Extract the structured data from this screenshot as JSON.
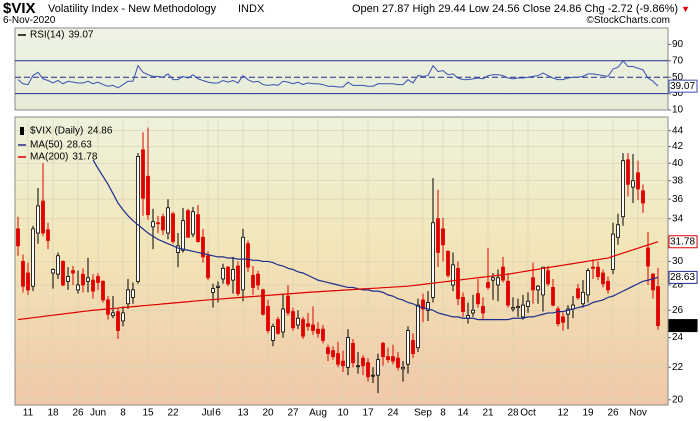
{
  "header": {
    "symbol": "$VIX",
    "name": "Volatility Index - New Methodology",
    "exchange": "INDX",
    "date": "6-Nov-2020",
    "quote": {
      "open_label": "Open",
      "open": 27.87,
      "high_label": "High",
      "high": 29.44,
      "low_label": "Low",
      "low": 24.56,
      "close_label": "Close",
      "close": 24.86,
      "chg_label": "Chg",
      "chg": -2.72,
      "chg_pct": "(-9.86%)"
    },
    "credit": "©StockCharts.com"
  },
  "chart_data": [
    {
      "type": "line",
      "series": [
        {
          "name": "RSI(14)",
          "color": "#3a4fb0",
          "values": [
            47,
            42,
            41,
            52,
            56,
            48,
            46,
            43,
            46,
            42,
            45,
            44,
            43,
            43,
            45,
            42,
            44,
            41,
            39,
            40,
            37,
            41,
            45,
            45,
            64,
            56,
            53,
            51,
            51,
            50,
            54,
            47,
            47,
            51,
            49,
            53,
            48,
            46,
            44,
            43,
            43,
            46,
            44,
            46,
            43,
            52,
            47,
            44,
            45,
            41,
            40,
            41,
            40,
            45,
            44,
            42,
            44,
            41,
            43,
            42,
            42,
            41,
            39,
            39,
            38,
            38,
            44,
            40,
            40,
            40,
            39,
            39,
            42,
            42,
            42,
            42,
            41,
            41,
            47,
            43,
            52,
            51,
            52,
            64,
            57,
            58,
            53,
            54,
            49,
            47,
            47,
            48,
            49,
            48,
            52,
            53,
            53,
            52,
            49,
            48,
            49,
            49,
            50,
            51,
            52,
            55,
            52,
            49,
            47,
            47,
            49,
            50,
            50,
            51,
            54,
            54,
            53,
            52,
            51,
            60,
            62,
            70,
            63,
            63,
            61,
            59,
            49,
            45,
            39.07
          ]
        }
      ],
      "ylim": [
        10,
        110
      ],
      "yticks": [
        10,
        30,
        50,
        70,
        90
      ],
      "reference_lines": [
        {
          "value": 70,
          "dash": false
        },
        {
          "value": 50,
          "dash": true
        },
        {
          "value": 30,
          "dash": false
        }
      ]
    },
    {
      "type": "candlestick",
      "name": "$VIX (Daily)",
      "up_color": "#000000",
      "down_color": "#e00000",
      "categories": [
        null,
        null,
        "11",
        null,
        null,
        null,
        null,
        "18",
        null,
        null,
        null,
        null,
        "26",
        null,
        null,
        null,
        "Jun",
        null,
        null,
        null,
        null,
        "8",
        null,
        null,
        null,
        null,
        "15",
        null,
        null,
        null,
        null,
        "22",
        null,
        null,
        null,
        null,
        null,
        null,
        "Jul",
        null,
        "6",
        null,
        null,
        null,
        null,
        "13",
        null,
        null,
        null,
        null,
        "20",
        null,
        null,
        null,
        null,
        "27",
        null,
        null,
        null,
        null,
        "Aug",
        null,
        null,
        null,
        null,
        "10",
        null,
        null,
        null,
        null,
        "17",
        null,
        null,
        null,
        null,
        "24",
        null,
        null,
        null,
        null,
        null,
        "Sep",
        null,
        null,
        null,
        "8",
        null,
        null,
        null,
        "14",
        null,
        null,
        null,
        null,
        "21",
        null,
        null,
        null,
        null,
        "28",
        null,
        null,
        "Oct",
        null,
        null,
        null,
        null,
        null,
        null,
        "12",
        null,
        null,
        null,
        null,
        "19",
        null,
        null,
        null,
        null,
        "26",
        null,
        null,
        null,
        null,
        "Nov",
        null,
        null,
        null,
        null
      ],
      "open": [
        33.0,
        30.0,
        29.0,
        27.9,
        32.6,
        35.8,
        32.9,
        29.0,
        28.9,
        30.0,
        28.3,
        29.2,
        27.6,
        28.9,
        28.3,
        28.4,
        28.7,
        28.3,
        26.8,
        25.6,
        25.9,
        25.2,
        26.5,
        27.0,
        28.3,
        41.6,
        38.5,
        33.2,
        33.6,
        34.2,
        32.6,
        34.5,
        30.8,
        31.0,
        34.8,
        32.5,
        34.4,
        32.2,
        30.5,
        27.4,
        27.8,
        28.5,
        29.5,
        28.4,
        29.6,
        27.6,
        31.6,
        28.8,
        28.9,
        27.6,
        26.3,
        23.8,
        25.3,
        24.4,
        27.1,
        25.9,
        24.9,
        25.3,
        25.0,
        24.9,
        24.6,
        24.6,
        23.3,
        23.1,
        22.9,
        22.4,
        22.0,
        23.6,
        22.1,
        22.6,
        22.3,
        21.5,
        21.5,
        23.6,
        22.7,
        22.7,
        22.6,
        21.9,
        22.2,
        23.8,
        23.3,
        26.8,
        26.0,
        27.0,
        34.0,
        33.0,
        30.9,
        28.0,
        29.4,
        27.0,
        25.4,
        25.8,
        27.3,
        26.3,
        28.2,
        28.4,
        28.0,
        29.5,
        28.3,
        26.1,
        26.2,
        25.5,
        26.3,
        28.6,
        27.6,
        27.2,
        29.2,
        27.8,
        26.1,
        25.5,
        25.7,
        26.1,
        27.7,
        26.5,
        27.2,
        29.5,
        29.5,
        29.0,
        28.3,
        29.3,
        32.2,
        34.2,
        40.4,
        37.3,
        38.9,
        36.9,
        31.2,
        28.9,
        27.87
      ],
      "high": [
        34.2,
        30.6,
        29.9,
        33.3,
        37.2,
        40.0,
        33.6,
        29.4,
        30.8,
        30.1,
        29.5,
        29.6,
        29.2,
        29.4,
        30.3,
        28.9,
        29.0,
        28.4,
        27.1,
        27.1,
        26.2,
        26.3,
        28.5,
        28.2,
        41.2,
        43.8,
        44.4,
        35.0,
        34.3,
        34.5,
        36.0,
        34.7,
        32.6,
        35.1,
        35.0,
        35.2,
        35.4,
        33.0,
        30.9,
        28.1,
        28.3,
        29.8,
        29.6,
        30.4,
        30.0,
        33.0,
        31.9,
        29.6,
        29.2,
        27.7,
        26.8,
        25.0,
        25.5,
        27.3,
        28.0,
        26.2,
        26.0,
        25.5,
        25.8,
        26.3,
        25.1,
        24.9,
        23.5,
        23.4,
        23.7,
        23.1,
        24.6,
        23.9,
        23.0,
        22.8,
        22.6,
        22.0,
        22.9,
        23.7,
        23.3,
        23.5,
        23.0,
        22.4,
        24.8,
        24.3,
        26.9,
        27.3,
        27.5,
        38.3,
        37.0,
        34.1,
        31.0,
        30.8,
        30.0,
        27.4,
        26.6,
        27.2,
        28.5,
        27.0,
        31.2,
        29.0,
        29.3,
        30.4,
        29.0,
        27.0,
        26.9,
        27.2,
        27.4,
        29.9,
        28.0,
        29.5,
        29.6,
        28.5,
        26.3,
        25.8,
        26.4,
        27.1,
        28.1,
        28.4,
        29.4,
        30.2,
        30.0,
        29.3,
        28.7,
        33.6,
        34.5,
        41.2,
        41.2,
        41.1,
        40.3,
        37.6,
        32.7,
        29.0,
        29.44
      ],
      "low": [
        30.5,
        27.4,
        27.2,
        27.5,
        31.6,
        32.3,
        31.1,
        27.7,
        28.5,
        27.9,
        27.6,
        28.0,
        27.3,
        27.4,
        27.4,
        26.9,
        27.6,
        26.6,
        25.3,
        25.4,
        23.9,
        24.8,
        26.1,
        26.5,
        28.1,
        34.3,
        33.9,
        31.1,
        32.6,
        32.4,
        32.0,
        31.6,
        29.5,
        30.8,
        32.2,
        32.2,
        31.7,
        29.9,
        28.4,
        26.2,
        26.6,
        28.1,
        27.9,
        27.3,
        27.1,
        26.7,
        29.1,
        27.2,
        27.6,
        25.6,
        24.3,
        23.4,
        24.2,
        24.0,
        25.6,
        24.5,
        24.6,
        23.9,
        24.5,
        24.2,
        24.0,
        23.6,
        22.4,
        22.5,
        22.0,
        21.7,
        21.5,
        22.0,
        21.6,
        21.5,
        21.1,
        21.0,
        20.4,
        22.1,
        22.3,
        22.2,
        21.8,
        21.1,
        21.6,
        22.6,
        23.0,
        25.1,
        25.2,
        26.6,
        29.5,
        30.0,
        28.6,
        27.5,
        26.4,
        25.5,
        25.0,
        25.5,
        26.2,
        25.3,
        27.6,
        26.8,
        26.7,
        28.2,
        26.2,
        25.9,
        25.5,
        25.3,
        25.8,
        26.5,
        26.5,
        25.9,
        27.9,
        26.3,
        24.8,
        24.5,
        24.6,
        25.4,
        26.8,
        26.2,
        26.6,
        28.5,
        28.4,
        27.8,
        27.3,
        28.9,
        31.5,
        33.3,
        36.3,
        35.6,
        35.9,
        34.6,
        28.0,
        26.9,
        24.56
      ],
      "close": [
        31.4,
        27.9,
        27.6,
        33.0,
        35.3,
        32.6,
        31.9,
        29.3,
        30.5,
        28.0,
        28.7,
        29.0,
        28.0,
        28.0,
        28.6,
        27.5,
        28.2,
        26.8,
        25.7,
        25.8,
        24.5,
        25.8,
        27.6,
        27.6,
        40.8,
        36.1,
        34.4,
        33.7,
        33.5,
        32.9,
        35.1,
        31.8,
        31.4,
        33.8,
        32.2,
        34.7,
        31.8,
        30.4,
        28.6,
        27.7,
        27.9,
        29.4,
        28.1,
        29.3,
        27.3,
        32.2,
        29.5,
        27.8,
        28.0,
        25.7,
        24.5,
        24.8,
        24.3,
        26.1,
        25.8,
        24.7,
        25.4,
        24.1,
        24.8,
        24.5,
        24.3,
        23.8,
        22.9,
        22.7,
        22.2,
        22.1,
        24.0,
        22.3,
        22.1,
        22.1,
        21.4,
        21.5,
        22.5,
        22.7,
        22.5,
        22.4,
        22.0,
        22.0,
        24.5,
        22.9,
        26.4,
        26.1,
        26.6,
        33.6,
        30.8,
        31.5,
        28.8,
        29.7,
        26.9,
        25.9,
        25.6,
        26.0,
        26.5,
        25.8,
        27.8,
        28.6,
        28.6,
        28.4,
        26.4,
        26.2,
        26.3,
        26.4,
        26.7,
        27.6,
        27.9,
        29.5,
        28.1,
        26.4,
        25.0,
        25.1,
        26.1,
        26.4,
        26.97,
        27.4,
        29.2,
        29.4,
        28.7,
        28.1,
        27.6,
        32.5,
        33.4,
        40.3,
        37.6,
        38.0,
        37.1,
        35.6,
        29.6,
        27.6,
        24.86
      ],
      "series": [
        {
          "name": "MA(50)",
          "color": "#1f2c8c",
          "values": [
            null,
            null,
            null,
            null,
            null,
            null,
            null,
            null,
            null,
            null,
            null,
            null,
            null,
            null,
            null,
            40.4,
            39.4,
            38.5,
            37.6,
            36.6,
            35.6,
            34.9,
            34.3,
            33.8,
            33.4,
            33.0,
            32.6,
            32.3,
            32.0,
            31.8,
            31.6,
            31.4,
            31.2,
            31.1,
            31.0,
            30.9,
            30.8,
            30.7,
            30.6,
            30.5,
            30.4,
            30.4,
            30.3,
            30.3,
            30.2,
            30.2,
            30.2,
            30.1,
            30.1,
            30.0,
            30.0,
            29.9,
            29.7,
            29.6,
            29.4,
            29.3,
            29.1,
            29.0,
            28.8,
            28.6,
            28.4,
            28.3,
            28.2,
            28.1,
            28.0,
            27.9,
            27.8,
            27.8,
            27.7,
            27.6,
            27.6,
            27.5,
            27.5,
            27.4,
            27.2,
            27.1,
            26.9,
            26.8,
            26.6,
            26.5,
            26.3,
            26.2,
            26.1,
            26.0,
            25.8,
            25.7,
            25.6,
            25.5,
            25.5,
            25.4,
            25.4,
            25.4,
            25.3,
            25.3,
            25.3,
            25.3,
            25.3,
            25.3,
            25.3,
            25.4,
            25.4,
            25.4,
            25.5,
            25.5,
            25.6,
            25.7,
            25.8,
            25.8,
            25.9,
            25.9,
            26.0,
            26.1,
            26.2,
            26.3,
            26.4,
            26.6,
            26.7,
            26.8,
            27.0,
            27.1,
            27.3,
            27.5,
            27.7,
            27.9,
            28.1,
            28.3,
            28.4,
            28.5,
            28.63
          ]
        },
        {
          "name": "MA(200)",
          "color": "#e00000",
          "values": [
            25.3,
            25.35,
            25.39,
            25.44,
            25.49,
            25.53,
            25.58,
            25.63,
            25.67,
            25.72,
            25.77,
            25.81,
            25.86,
            25.91,
            25.95,
            26.0,
            26.03,
            26.07,
            26.1,
            26.14,
            26.17,
            26.21,
            26.24,
            26.28,
            26.31,
            26.35,
            26.38,
            26.42,
            26.45,
            26.49,
            26.52,
            26.56,
            26.59,
            26.63,
            26.66,
            26.7,
            26.73,
            26.77,
            26.8,
            26.83,
            26.86,
            26.89,
            26.92,
            26.95,
            26.98,
            27.01,
            27.04,
            27.07,
            27.1,
            27.13,
            27.16,
            27.19,
            27.22,
            27.25,
            27.28,
            27.31,
            27.34,
            27.37,
            27.4,
            27.43,
            27.45,
            27.48,
            27.5,
            27.53,
            27.55,
            27.58,
            27.6,
            27.63,
            27.65,
            27.68,
            27.7,
            27.73,
            27.75,
            27.78,
            27.8,
            27.83,
            27.85,
            27.88,
            27.9,
            27.95,
            28.0,
            28.05,
            28.1,
            28.15,
            28.2,
            28.25,
            28.3,
            28.35,
            28.4,
            28.45,
            28.5,
            28.55,
            28.6,
            28.65,
            28.7,
            28.75,
            28.8,
            28.85,
            28.9,
            28.97,
            29.04,
            29.11,
            29.18,
            29.25,
            29.32,
            29.39,
            29.46,
            29.53,
            29.6,
            29.67,
            29.74,
            29.81,
            29.88,
            29.95,
            30.02,
            30.09,
            30.16,
            30.23,
            30.3,
            30.45,
            30.6,
            30.74,
            30.89,
            31.04,
            31.19,
            31.34,
            31.48,
            31.63,
            31.78
          ]
        }
      ],
      "ylim": [
        19.7,
        45.8
      ],
      "yticks": [
        20,
        22,
        24,
        26,
        28,
        30,
        34,
        36,
        38,
        40,
        42,
        44
      ],
      "log_scale": true,
      "grid": true
    }
  ]
}
